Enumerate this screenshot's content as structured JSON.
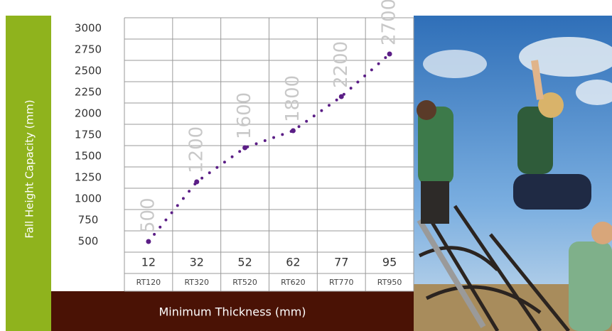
{
  "chart_data": {
    "type": "scatter",
    "y_label": "Fall Height Capacity (mm)",
    "x_label": "Minimum Thickness (mm)",
    "categories": [
      "12",
      "32",
      "52",
      "62",
      "77",
      "95"
    ],
    "products": [
      "RT120",
      "RT320",
      "RT520",
      "RT620",
      "RT770",
      "RT950"
    ],
    "values": [
      500,
      1200,
      1600,
      1800,
      2200,
      2700
    ],
    "color": "#5b1e86",
    "ylim": [
      375,
      3125
    ],
    "yticks": [
      500,
      750,
      1000,
      1250,
      1500,
      1750,
      2000,
      2250,
      2500,
      2750,
      3000
    ]
  }
}
